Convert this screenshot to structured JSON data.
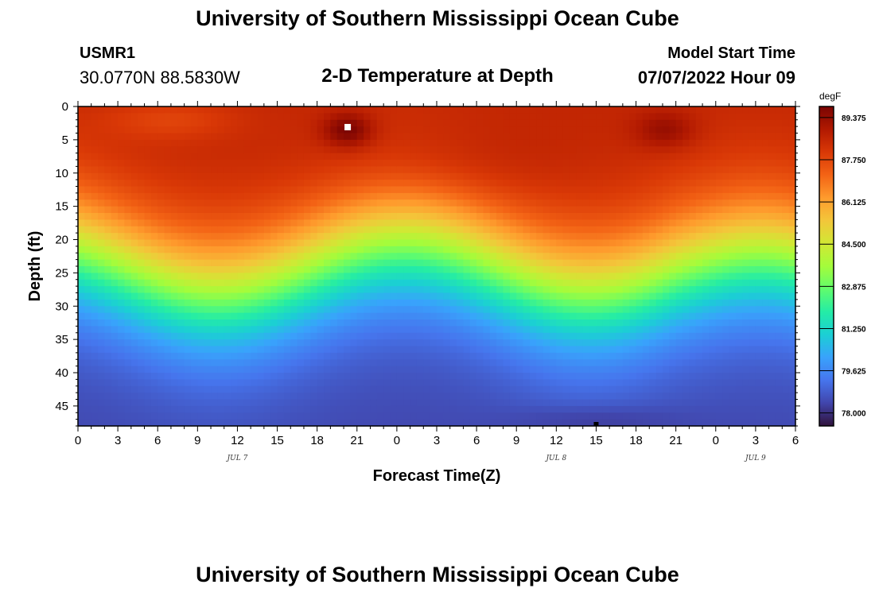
{
  "header": {
    "title": "University of Southern Mississippi Ocean Cube",
    "station_id": "USMR1",
    "station_coords": "30.0770N  88.5830W",
    "subtitle": "2-D Temperature at Depth",
    "model_start_label": "Model Start Time",
    "model_start_value": "07/07/2022 Hour 09"
  },
  "footer": {
    "title": "University of Southern Mississippi Ocean Cube"
  },
  "chart_data": {
    "type": "heatmap",
    "title": "2-D Temperature at Depth",
    "xlabel": "Forecast Time(Z)",
    "ylabel": "Depth (ft)",
    "x_ticks": [
      "0",
      "3",
      "6",
      "9",
      "12",
      "15",
      "18",
      "21",
      "0",
      "3",
      "6",
      "9",
      "12",
      "15",
      "18",
      "21",
      "0",
      "3",
      "6"
    ],
    "x_range_hours": [
      0,
      54
    ],
    "date_labels": [
      {
        "label": "JUL 7",
        "hour": 12
      },
      {
        "label": "JUL 8",
        "hour": 36
      },
      {
        "label": "JUL 9",
        "hour": 51
      }
    ],
    "y_ticks": [
      0,
      5,
      10,
      15,
      20,
      25,
      30,
      35,
      40,
      45
    ],
    "y_range_ft": [
      0,
      48
    ],
    "y_inverted": true,
    "colorbar": {
      "unit": "degF",
      "min": 77.5,
      "max": 89.8,
      "labels": [
        "89.375",
        "87.750",
        "86.125",
        "84.500",
        "82.875",
        "81.250",
        "79.625",
        "78.000"
      ]
    },
    "colors": {
      "ramp": [
        "#30123b",
        "#4145ab",
        "#4675ed",
        "#39a2fc",
        "#1bcfd4",
        "#24eca6",
        "#61fc6c",
        "#a4fc3b",
        "#d1e834",
        "#f3c63a",
        "#fe9b2d",
        "#f36315",
        "#d93806",
        "#b11901",
        "#7a0402"
      ]
    }
  }
}
